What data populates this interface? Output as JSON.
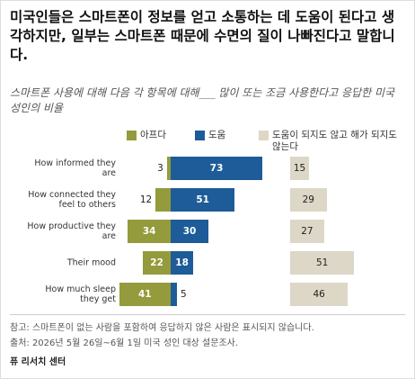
{
  "chart_data": {
    "type": "diverging_bar",
    "title": "미국인들은 스마트폰이 정보를 얻고 소통하는 데 도움이 된다고 생각하지만, 일부는 스마트폰 때문에 수면의 질이 나빠진다고 말합니다.",
    "subtitle": "스마트폰 사용에 대해 다음 각 항목에 대해___ 많이 또는 조금 사용한다고 응답한 미국 성인의 비율",
    "categories": [
      "How informed they are",
      "How connected they feel to others",
      "How productive they are",
      "Their mood",
      "How much sleep they get"
    ],
    "series": [
      {
        "name": "아프다",
        "color": "#949b3c",
        "values": [
          3,
          12,
          34,
          22,
          41
        ]
      },
      {
        "name": "도움",
        "color": "#1d5c98",
        "values": [
          73,
          51,
          30,
          18,
          5
        ]
      },
      {
        "name": "도움이 되지도 않고 해가 되지도 않는다",
        "color": "#dcd7c7",
        "values": [
          15,
          29,
          27,
          51,
          46
        ]
      }
    ],
    "note": "참고: 스마트폰이 없는 사람을 포함하여 응답하지 않은 사람은 표시되지 않습니다.",
    "source": "출처: 2026년 5월 26일~6월 1일 미국 성인 대상 설문조사.",
    "credit": "퓨 리서치 센터"
  }
}
